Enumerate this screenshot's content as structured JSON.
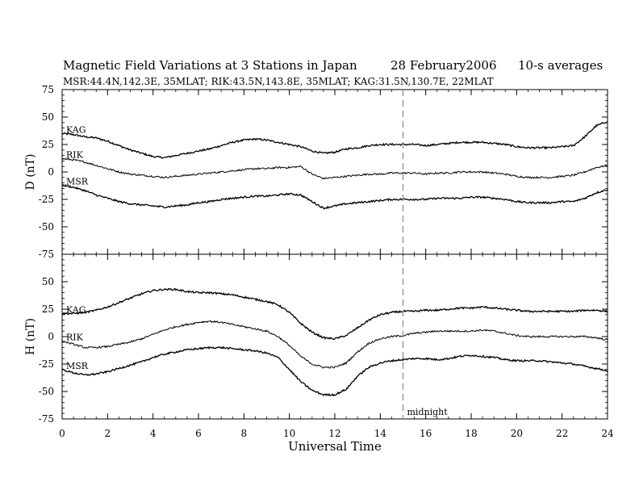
{
  "header": {
    "title": "Magnetic Field Variations at 3 Stations in Japan",
    "date": "28 February2006",
    "averaging": "10-s averages",
    "stations": "MSR:44.4N,142.3E, 35MLAT;  RIK:43.5N,143.8E, 35MLAT;  KAG:31.5N,130.7E, 22MLAT"
  },
  "chart_data": {
    "type": "line",
    "xlabel": "Universal Time",
    "xlim": [
      0,
      24
    ],
    "xticks": [
      0,
      2,
      4,
      6,
      8,
      10,
      12,
      14,
      16,
      18,
      20,
      22,
      24
    ],
    "annotation": {
      "x": 15,
      "label": "midnight",
      "style": "dashed-vertical"
    },
    "panels": [
      {
        "ylabel": "D (nT)",
        "ylim": [
          -75,
          75
        ],
        "yticks": [
          75,
          50,
          25,
          0,
          -25,
          -50,
          -75
        ],
        "series": [
          {
            "name": "KAG",
            "x": [
              0,
              0.5,
              1,
              1.5,
              2,
              2.5,
              3,
              3.5,
              4,
              4.5,
              5,
              5.5,
              6,
              6.5,
              7,
              7.5,
              8,
              8.5,
              9,
              9.5,
              10,
              10.5,
              11,
              11.5,
              12,
              12.5,
              13,
              13.5,
              14,
              14.5,
              15,
              15.5,
              16,
              16.5,
              17,
              17.5,
              18,
              18.5,
              19,
              19.5,
              20,
              20.5,
              21,
              21.5,
              22,
              22.5,
              23,
              23.5,
              24
            ],
            "y": [
              35,
              34,
              32,
              31,
              28,
              24,
              20,
              17,
              14,
              13,
              15,
              17,
              19,
              21,
              24,
              27,
              29,
              30,
              29,
              27,
              25,
              23,
              19,
              17,
              18,
              21,
              22,
              24,
              25,
              25,
              25,
              25,
              24,
              25,
              26,
              27,
              27,
              27,
              26,
              25,
              23,
              22,
              22,
              22,
              23,
              24,
              32,
              42,
              46
            ]
          },
          {
            "name": "RIK",
            "x": [
              0,
              0.5,
              1,
              1.5,
              2,
              2.5,
              3,
              3.5,
              4,
              4.5,
              5,
              5.5,
              6,
              6.5,
              7,
              7.5,
              8,
              8.5,
              9,
              9.5,
              10,
              10.5,
              11,
              11.5,
              12,
              12.5,
              13,
              13.5,
              14,
              14.5,
              15,
              15.5,
              16,
              16.5,
              17,
              17.5,
              18,
              18.5,
              19,
              19.5,
              20,
              20.5,
              21,
              21.5,
              22,
              22.5,
              23,
              23.5,
              24
            ],
            "y": [
              12,
              11,
              9,
              6,
              3,
              0,
              -2,
              -3,
              -4,
              -5,
              -4,
              -3,
              -2,
              -1,
              0,
              1,
              2,
              3,
              3,
              4,
              4,
              5,
              -2,
              -6,
              -5,
              -4,
              -3,
              -2,
              -2,
              -1,
              -1,
              -1,
              -2,
              -1,
              -1,
              0,
              0,
              0,
              -1,
              -2,
              -4,
              -5,
              -5,
              -5,
              -4,
              -3,
              0,
              4,
              6
            ]
          },
          {
            "name": "MSR",
            "x": [
              0,
              0.5,
              1,
              1.5,
              2,
              2.5,
              3,
              3.5,
              4,
              4.5,
              5,
              5.5,
              6,
              6.5,
              7,
              7.5,
              8,
              8.5,
              9,
              9.5,
              10,
              10.5,
              11,
              11.5,
              12,
              12.5,
              13,
              13.5,
              14,
              14.5,
              15,
              15.5,
              16,
              16.5,
              17,
              17.5,
              18,
              18.5,
              19,
              19.5,
              20,
              20.5,
              21,
              21.5,
              22,
              22.5,
              23,
              23.5,
              24
            ],
            "y": [
              -12,
              -14,
              -17,
              -21,
              -24,
              -27,
              -29,
              -30,
              -31,
              -32,
              -31,
              -30,
              -28,
              -27,
              -25,
              -24,
              -23,
              -22,
              -22,
              -21,
              -20,
              -21,
              -27,
              -33,
              -31,
              -29,
              -28,
              -27,
              -26,
              -25,
              -25,
              -25,
              -25,
              -24,
              -24,
              -24,
              -23,
              -23,
              -24,
              -25,
              -27,
              -28,
              -28,
              -28,
              -27,
              -27,
              -24,
              -19,
              -16
            ]
          }
        ]
      },
      {
        "ylabel": "H (nT)",
        "ylim": [
          -75,
          75
        ],
        "yticks": [
          75,
          50,
          25,
          0,
          -25,
          -50,
          -75
        ],
        "series": [
          {
            "name": "KAG",
            "x": [
              0,
              0.5,
              1,
              1.5,
              2,
              2.5,
              3,
              3.5,
              4,
              4.5,
              5,
              5.5,
              6,
              6.5,
              7,
              7.5,
              8,
              8.5,
              9,
              9.5,
              10,
              10.5,
              11,
              11.5,
              12,
              12.5,
              13,
              13.5,
              14,
              14.5,
              15,
              15.5,
              16,
              16.5,
              17,
              17.5,
              18,
              18.5,
              19,
              19.5,
              20,
              20.5,
              21,
              21.5,
              22,
              22.5,
              23,
              23.5,
              24
            ],
            "y": [
              21,
              21,
              22,
              24,
              27,
              31,
              35,
              39,
              42,
              43,
              43,
              41,
              40,
              40,
              39,
              38,
              36,
              34,
              32,
              29,
              22,
              12,
              4,
              -1,
              -2,
              1,
              8,
              15,
              20,
              22,
              23,
              23,
              24,
              24,
              25,
              26,
              26,
              27,
              26,
              25,
              24,
              23,
              23,
              23,
              23,
              23,
              24,
              24,
              23
            ]
          },
          {
            "name": "RIK",
            "x": [
              0,
              0.5,
              1,
              1.5,
              2,
              2.5,
              3,
              3.5,
              4,
              4.5,
              5,
              5.5,
              6,
              6.5,
              7,
              7.5,
              8,
              8.5,
              9,
              9.5,
              10,
              10.5,
              11,
              11.5,
              12,
              12.5,
              13,
              13.5,
              14,
              14.5,
              15,
              15.5,
              16,
              16.5,
              17,
              17.5,
              18,
              18.5,
              19,
              19.5,
              20,
              20.5,
              21,
              21.5,
              22,
              22.5,
              23,
              23.5,
              24
            ],
            "y": [
              -4,
              -7,
              -10,
              -10,
              -9,
              -7,
              -5,
              -2,
              2,
              6,
              9,
              11,
              13,
              14,
              13,
              11,
              9,
              7,
              5,
              0,
              -8,
              -18,
              -25,
              -28,
              -28,
              -24,
              -14,
              -6,
              -2,
              0,
              1,
              3,
              4,
              5,
              5,
              5,
              5,
              6,
              5,
              3,
              1,
              0,
              0,
              0,
              0,
              0,
              0,
              -1,
              -3
            ]
          },
          {
            "name": "MSR",
            "x": [
              0,
              0.5,
              1,
              1.5,
              2,
              2.5,
              3,
              3.5,
              4,
              4.5,
              5,
              5.5,
              6,
              6.5,
              7,
              7.5,
              8,
              8.5,
              9,
              9.5,
              10,
              10.5,
              11,
              11.5,
              12,
              12.5,
              13,
              13.5,
              14,
              14.5,
              15,
              15.5,
              16,
              16.5,
              17,
              17.5,
              18,
              18.5,
              19,
              19.5,
              20,
              20.5,
              21,
              21.5,
              22,
              22.5,
              23,
              23.5,
              24
            ],
            "y": [
              -30,
              -33,
              -35,
              -34,
              -32,
              -29,
              -26,
              -23,
              -19,
              -16,
              -14,
              -12,
              -11,
              -10,
              -10,
              -11,
              -12,
              -13,
              -15,
              -19,
              -30,
              -41,
              -49,
              -53,
              -53,
              -48,
              -36,
              -28,
              -24,
              -22,
              -21,
              -20,
              -20,
              -21,
              -20,
              -18,
              -17,
              -18,
              -19,
              -21,
              -22,
              -22,
              -22,
              -23,
              -24,
              -25,
              -27,
              -29,
              -31
            ]
          }
        ]
      }
    ]
  }
}
